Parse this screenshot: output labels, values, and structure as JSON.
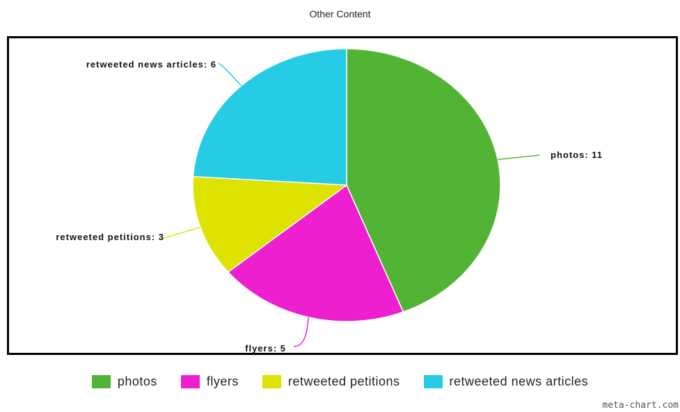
{
  "chart_data": {
    "type": "pie",
    "title": "Other Content",
    "categories": [
      "photos",
      "flyers",
      "retweeted petitions",
      "retweeted news articles"
    ],
    "values": [
      11,
      5,
      3,
      6
    ],
    "colors": [
      "#52b435",
      "#ee1fcf",
      "#dde200",
      "#26cce6"
    ],
    "slice_labels": [
      "photos: 11",
      "flyers: 5",
      "retweeted petitions: 3",
      "retweeted news articles: 6"
    ],
    "legend_position": "bottom",
    "start_angle": "12 o'clock",
    "direction": "clockwise"
  },
  "credit": "meta-chart.com"
}
